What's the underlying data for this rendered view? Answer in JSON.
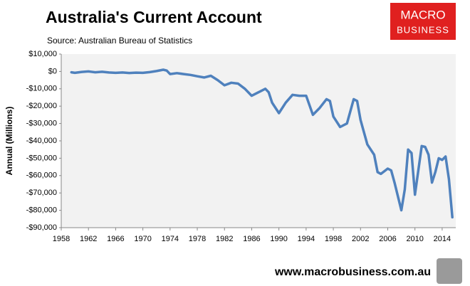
{
  "chart_data": {
    "type": "line",
    "title": "Australia's Current Account",
    "subtitle": "Source: Australian Bureau of Statistics",
    "y_label": "Annual (Millions)",
    "logo": [
      "MACRO",
      "BUSINESS"
    ],
    "footer": "www.macrobusiness.com.au",
    "x": [
      1959.5,
      1960,
      1961,
      1962,
      1963,
      1964,
      1965,
      1966,
      1967,
      1968,
      1969,
      1970,
      1971,
      1972,
      1973,
      1973.5,
      1974,
      1975,
      1976,
      1977,
      1978,
      1979,
      1980,
      1981,
      1982,
      1983,
      1984,
      1985,
      1986,
      1987,
      1988,
      1988.5,
      1989,
      1990,
      1991,
      1992,
      1993,
      1994,
      1995,
      1996,
      1997,
      1997.5,
      1998,
      1999,
      2000,
      2001,
      2001.5,
      2002,
      2003,
      2004,
      2004.5,
      2005,
      2006,
      2006.5,
      2007,
      2008,
      2008.5,
      2009,
      2009.5,
      2010,
      2011,
      2011.5,
      2012,
      2012.5,
      2013,
      2013.5,
      2014,
      2014.5,
      2015,
      2015.5
    ],
    "series": [
      {
        "name": "Current Account",
        "color": "#4f81bd",
        "values": [
          -500,
          -800,
          -300,
          0,
          -500,
          -200,
          -600,
          -800,
          -600,
          -900,
          -700,
          -800,
          -400,
          200,
          1000,
          500,
          -1500,
          -1000,
          -1500,
          -2000,
          -2800,
          -3500,
          -2500,
          -5000,
          -8000,
          -6500,
          -7000,
          -10000,
          -14000,
          -12000,
          -10000,
          -12000,
          -18000,
          -24000,
          -18000,
          -13500,
          -14000,
          -14000,
          -25000,
          -21000,
          -16000,
          -17000,
          -26000,
          -32000,
          -30000,
          -16000,
          -17000,
          -28000,
          -42000,
          -48000,
          -58000,
          -59000,
          -56000,
          -57000,
          -64000,
          -80000,
          -68000,
          -45000,
          -47000,
          -71000,
          -43000,
          -43500,
          -48000,
          -64000,
          -58000,
          -50000,
          -51000,
          -49000,
          -62000,
          -84000
        ]
      }
    ],
    "xlim": [
      1958,
      2016
    ],
    "xticks": [
      1958,
      1962,
      1966,
      1970,
      1974,
      1978,
      1982,
      1986,
      1990,
      1994,
      1998,
      2002,
      2006,
      2010,
      2014
    ],
    "ylim": [
      -90000,
      10000
    ],
    "yticks": [
      {
        "value": 10000,
        "label": "$10,000"
      },
      {
        "value": 0,
        "label": "$0"
      },
      {
        "value": -10000,
        "label": "-$10,000"
      },
      {
        "value": -20000,
        "label": "-$20,000"
      },
      {
        "value": -30000,
        "label": "-$30,000"
      },
      {
        "value": -40000,
        "label": "-$40,000"
      },
      {
        "value": -50000,
        "label": "-$50,000"
      },
      {
        "value": -60000,
        "label": "-$60,000"
      },
      {
        "value": -70000,
        "label": "-$70,000"
      },
      {
        "value": -80000,
        "label": "-$80,000"
      },
      {
        "value": -90000,
        "label": "-$90,000"
      }
    ],
    "grid": false
  }
}
